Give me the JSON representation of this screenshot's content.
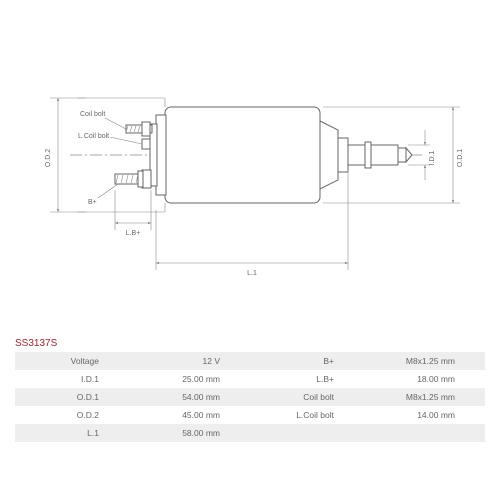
{
  "part_number": "SS3137S",
  "diagram_labels": {
    "coil_bolt": "Coil bolt",
    "l_coil_bolt": "L.Coil bolt",
    "b_plus": "B+",
    "lb_plus": "L.B+",
    "l1": "L.1",
    "od1": "O.D.1",
    "od2": "O.D.2",
    "id1": "I.D.1"
  },
  "specs": {
    "rows": [
      {
        "l1": "Voltage",
        "v1": "12 V",
        "l2": "B+",
        "v2": "M8x1.25 mm"
      },
      {
        "l1": "I.D.1",
        "v1": "25.00 mm",
        "l2": "L.B+",
        "v2": "18.00 mm"
      },
      {
        "l1": "O.D.1",
        "v1": "54.00 mm",
        "l2": "Coil bolt",
        "v2": "M8x1.25 mm"
      },
      {
        "l1": "O.D.2",
        "v1": "45.00 mm",
        "l2": "L.Coil bolt",
        "v2": "14.00 mm"
      },
      {
        "l1": "L.1",
        "v1": "58.00 mm",
        "l2": "",
        "v2": ""
      }
    ]
  },
  "styling": {
    "background": "#ffffff",
    "stroke_color": "#888888",
    "text_color": "#666666",
    "accent_color": "#b0202a",
    "row_bg_odd": "#eeeeee",
    "row_bg_even": "#ffffff",
    "diagram_font_size": 7,
    "table_font_size": 8.5
  }
}
